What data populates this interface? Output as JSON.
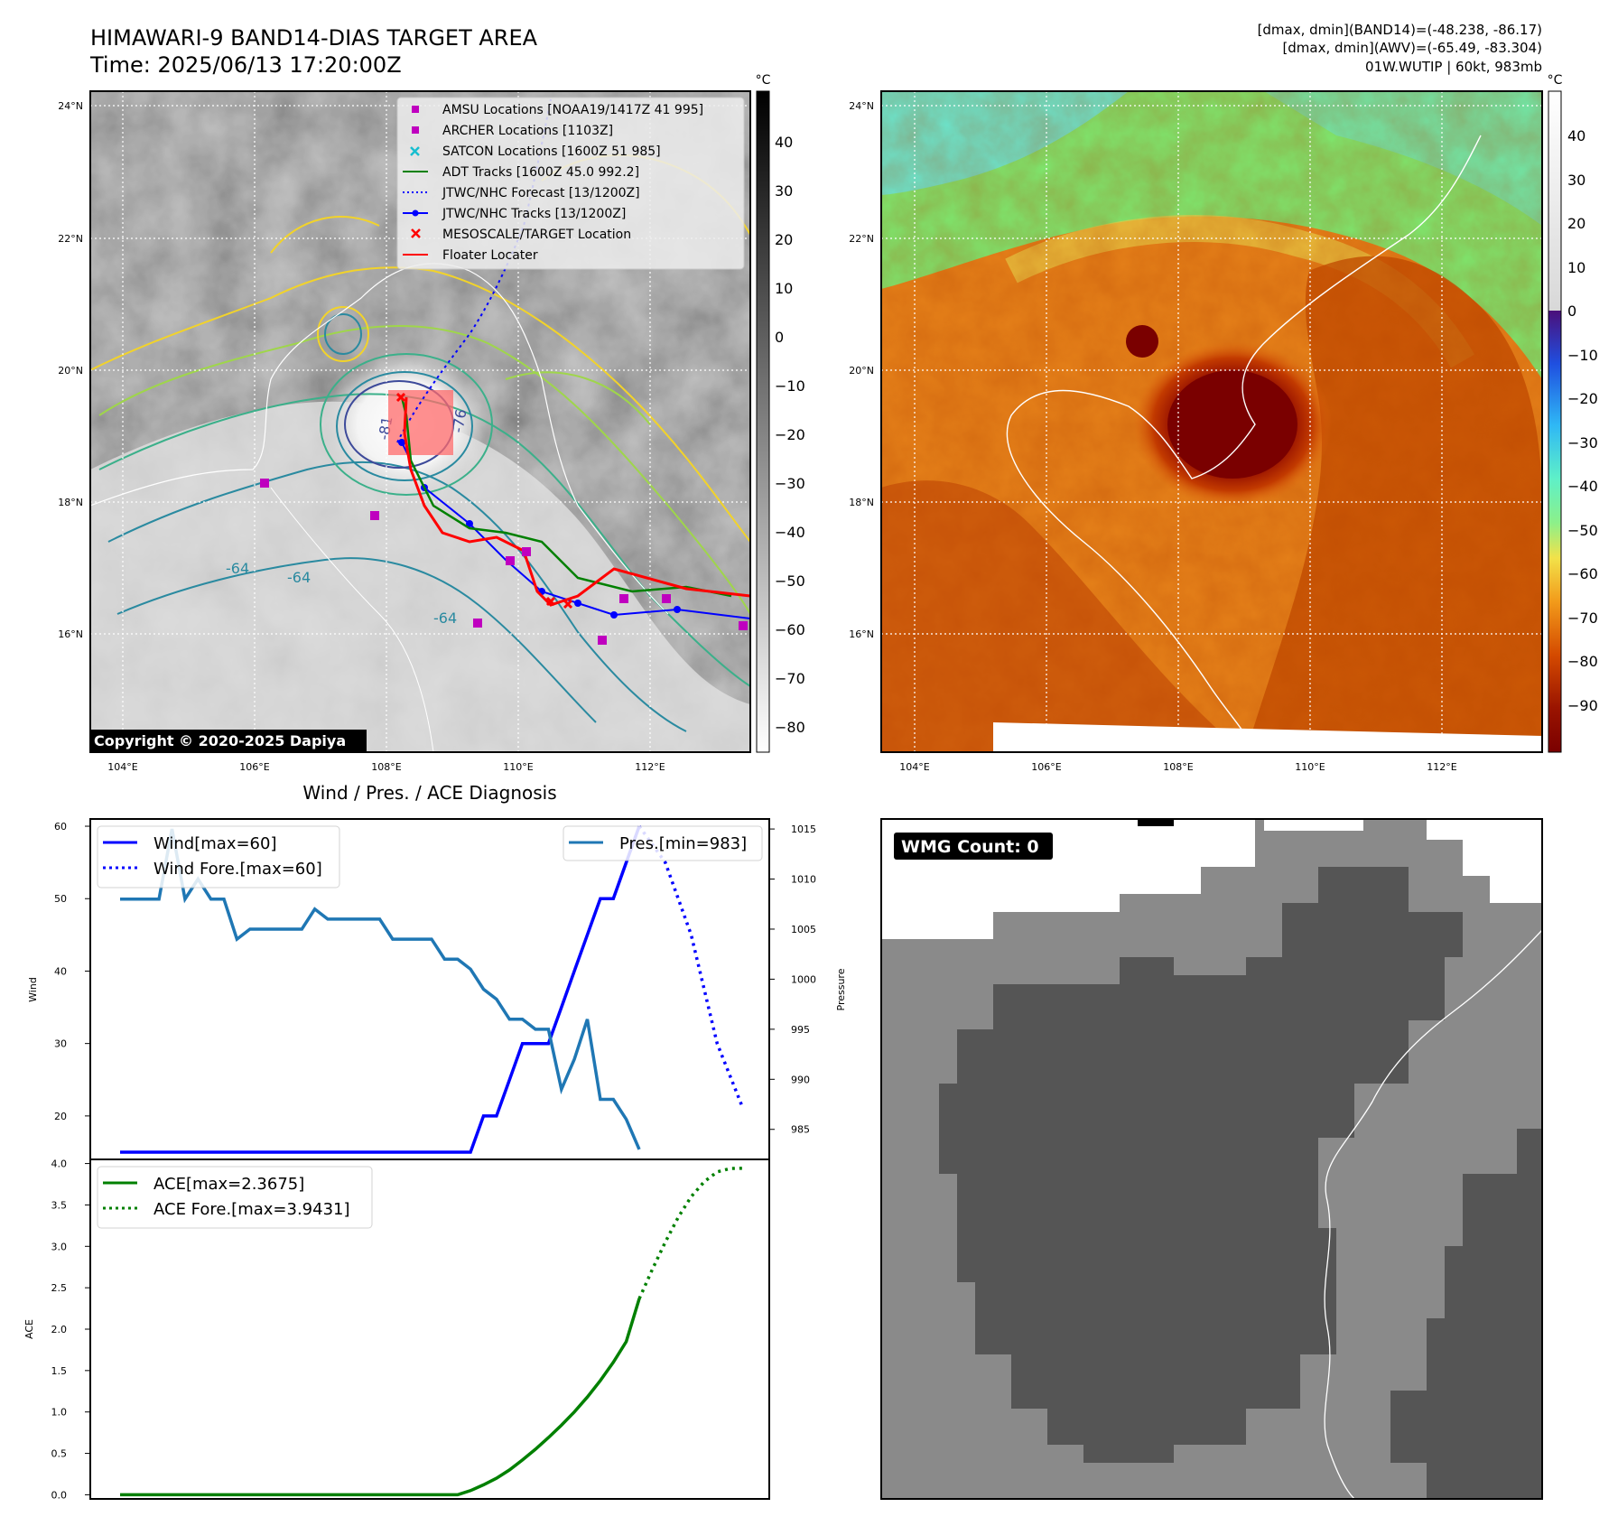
{
  "header": {
    "title": "HIMAWARI-9 BAND14-DIAS TARGET AREA",
    "time": "Time: 2025/06/13 17:20:00Z",
    "info_line1": "[dmax, dmin](BAND14)=(-48.238, -86.17)",
    "info_line2": "[dmax, dmin](AWV)=(-65.49, -83.304)",
    "info_line3": "01W.WUTIP | 60kt, 983mb"
  },
  "maps": {
    "lat_labels": [
      "24°N",
      "22°N",
      "20°N",
      "18°N",
      "16°N"
    ],
    "lon_labels": [
      "104°E",
      "106°E",
      "108°E",
      "110°E",
      "112°E"
    ],
    "copyright": "Copyright © 2020-2025 Dapiya",
    "contour_labels": [
      "-81",
      "-76",
      "-64",
      "-64",
      "-64",
      "-81"
    ],
    "colorbar_unit": "°C",
    "ir_colorbar_ticks": [
      "40",
      "30",
      "20",
      "10",
      "0",
      "−10",
      "−20",
      "−30",
      "−40",
      "−50",
      "−60",
      "−70",
      "−80"
    ],
    "wv_colorbar_ticks": [
      "40",
      "30",
      "20",
      "10",
      "0",
      "−10",
      "−20",
      "−30",
      "−40",
      "−50",
      "−60",
      "−70",
      "−80",
      "−90"
    ],
    "legend": [
      {
        "label": "AMSU Locations [NOAA19/1417Z 41 995]",
        "color": "#bf00bf",
        "marker": "square"
      },
      {
        "label": "ARCHER Locations [1103Z]",
        "color": "#bf00bf",
        "marker": "square"
      },
      {
        "label": "SATCON Locations [1600Z 51 985]",
        "color": "#17becf",
        "marker": "x"
      },
      {
        "label": "ADT Tracks [1600Z 45.0 992.2]",
        "color": "#008000",
        "marker": "line"
      },
      {
        "label": "JTWC/NHC Forecast [13/1200Z]",
        "color": "#0000ff",
        "marker": "dotted"
      },
      {
        "label": "JTWC/NHC Tracks [13/1200Z]",
        "color": "#0000ff",
        "marker": "line-dot"
      },
      {
        "label": "MESOSCALE/TARGET Location",
        "color": "#ff0000",
        "marker": "x"
      },
      {
        "label": "Floater Locater",
        "color": "#ff0000",
        "marker": "line"
      }
    ],
    "wmg_label": "WMG Count: 0"
  },
  "chart_data": [
    {
      "type": "line",
      "title": "Wind / Pres. / ACE Diagnosis",
      "ylabel": "Wind",
      "y2label": "Pressure",
      "ylim": [
        14,
        61
      ],
      "y2lim": [
        982,
        1016
      ],
      "yticks": [
        20,
        30,
        40,
        50,
        60
      ],
      "y2ticks": [
        985,
        990,
        995,
        1000,
        1005,
        1010,
        1015
      ],
      "series": [
        {
          "name": "Wind[max=60]",
          "color": "#0000ff",
          "style": "solid",
          "axis": "left",
          "x": [
            0,
            27,
            28,
            29,
            30,
            31,
            32,
            33,
            34,
            35,
            36,
            37,
            38,
            39,
            40
          ],
          "values": [
            15,
            15,
            20,
            20,
            25,
            30,
            30,
            30,
            35,
            40,
            45,
            50,
            50,
            55,
            60
          ]
        },
        {
          "name": "Wind Fore.[max=60]",
          "color": "#0000ff",
          "style": "dotted",
          "axis": "left",
          "x": [
            40,
            42,
            44,
            46,
            48
          ],
          "values": [
            60,
            55,
            45,
            30,
            21
          ]
        },
        {
          "name": "Pres.[min=983]",
          "color": "#1f77b4",
          "style": "solid",
          "axis": "right",
          "x": [
            0,
            2,
            3,
            4,
            5,
            6,
            7,
            8,
            9,
            10,
            11,
            12,
            13,
            14,
            15,
            16,
            17,
            18,
            19,
            20,
            21,
            22,
            23,
            24,
            25,
            26,
            27,
            28,
            29,
            30,
            31,
            32,
            33,
            34,
            35,
            36,
            37,
            38,
            39,
            40
          ],
          "values": [
            1008,
            1008,
            1008,
            1015,
            1008,
            1010,
            1008,
            1008,
            1004,
            1005,
            1005,
            1005,
            1005,
            1005,
            1007,
            1006,
            1006,
            1006,
            1006,
            1006,
            1004,
            1004,
            1004,
            1004,
            1002,
            1002,
            1001,
            999,
            998,
            996,
            996,
            995,
            995,
            989,
            992,
            996,
            988,
            988,
            986,
            983
          ]
        }
      ],
      "legend_placement": [
        "upper-left",
        "upper-right"
      ]
    },
    {
      "type": "line",
      "ylabel": "ACE",
      "ylim": [
        -0.05,
        4.05
      ],
      "yticks": [
        0.0,
        0.5,
        1.0,
        1.5,
        2.0,
        2.5,
        3.0,
        3.5,
        4.0
      ],
      "ytick_labels": [
        "0.0",
        "0.5",
        "1.0",
        "1.5",
        "2.0",
        "2.5",
        "3.0",
        "3.5",
        "4.0"
      ],
      "series": [
        {
          "name": "ACE[max=2.3675]",
          "color": "#008000",
          "style": "solid",
          "x": [
            0,
            26,
            27,
            28,
            29,
            30,
            31,
            32,
            33,
            34,
            35,
            36,
            37,
            38,
            39,
            40
          ],
          "values": [
            0,
            0,
            0.05,
            0.12,
            0.2,
            0.3,
            0.42,
            0.55,
            0.69,
            0.84,
            1.0,
            1.18,
            1.38,
            1.6,
            1.85,
            2.3675
          ]
        },
        {
          "name": "ACE Fore.[max=3.9431]",
          "color": "#008000",
          "style": "dotted",
          "x": [
            40,
            41,
            42,
            43,
            44,
            45,
            46,
            47,
            48
          ],
          "values": [
            2.3675,
            2.72,
            3.05,
            3.35,
            3.6,
            3.78,
            3.9,
            3.94,
            3.9431
          ]
        }
      ],
      "legend_placement": "upper-left"
    }
  ]
}
